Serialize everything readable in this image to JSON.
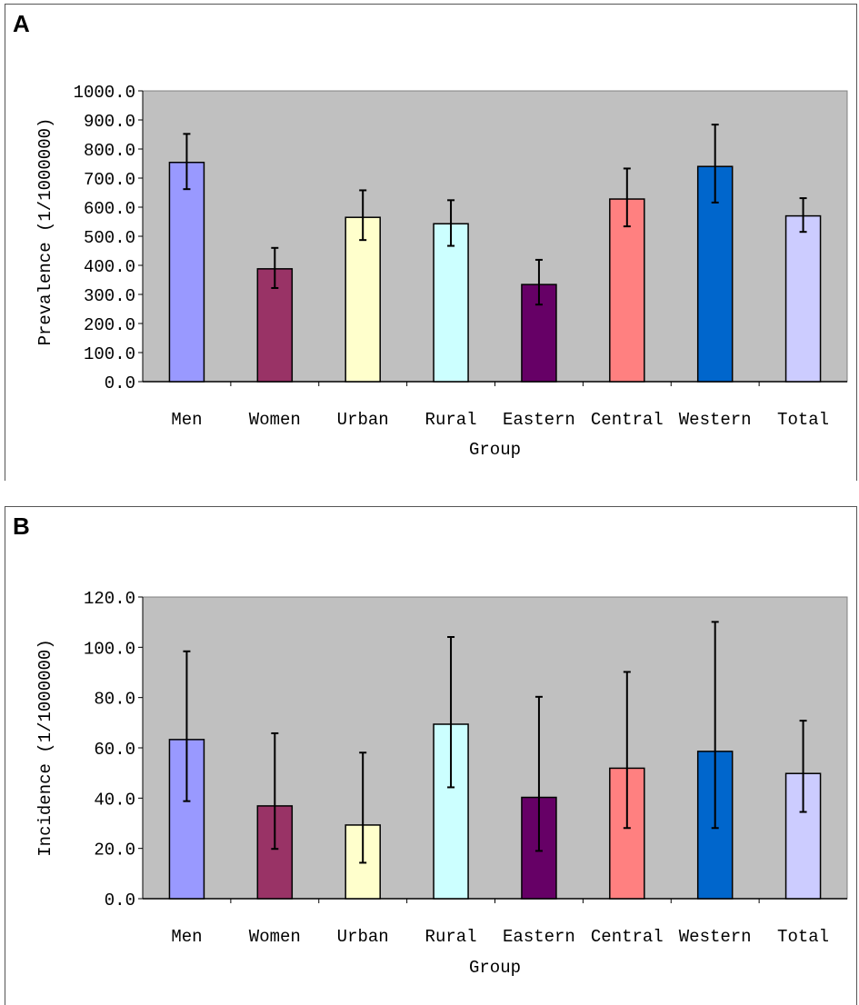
{
  "chart_data": [
    {
      "panel": "A",
      "type": "bar",
      "title": "",
      "xlabel": "Group",
      "ylabel": "Prevalence (1/1000000)",
      "ylim": [
        0,
        1000
      ],
      "yticks": [
        "0.0",
        "100.0",
        "200.0",
        "300.0",
        "400.0",
        "500.0",
        "600.0",
        "700.0",
        "800.0",
        "900.0",
        "1000.0"
      ],
      "categories": [
        "Men",
        "Women",
        "Urban",
        "Rural",
        "Eastern",
        "Central",
        "Western",
        "Total"
      ],
      "values": [
        754,
        388,
        565,
        543,
        334,
        628,
        740,
        570
      ],
      "error_low": [
        662,
        322,
        487,
        467,
        265,
        534,
        616,
        515
      ],
      "error_high": [
        852,
        460,
        658,
        624,
        419,
        733,
        884,
        631
      ],
      "colors": [
        "#9999ff",
        "#993366",
        "#ffffcc",
        "#ccffff",
        "#660066",
        "#ff8080",
        "#0066cc",
        "#ccccff"
      ],
      "background": "#c0c0c0",
      "grid": false
    },
    {
      "panel": "B",
      "type": "bar",
      "title": "",
      "xlabel": "Group",
      "ylabel": "Incidence (1/1000000)",
      "ylim": [
        0,
        120
      ],
      "yticks": [
        "0.0",
        "20.0",
        "40.0",
        "60.0",
        "80.0",
        "100.0",
        "120.0"
      ],
      "categories": [
        "Men",
        "Women",
        "Urban",
        "Rural",
        "Eastern",
        "Central",
        "Western",
        "Total"
      ],
      "values": [
        63.3,
        36.9,
        29.3,
        69.4,
        40.3,
        51.9,
        58.6,
        49.8
      ],
      "error_low": [
        38.8,
        19.8,
        14.3,
        44.3,
        19.0,
        28.1,
        28.1,
        34.5
      ],
      "error_high": [
        98.4,
        65.8,
        58.1,
        104.1,
        80.3,
        90.2,
        110.1,
        70.8
      ],
      "colors": [
        "#9999ff",
        "#993366",
        "#ffffcc",
        "#ccffff",
        "#660066",
        "#ff8080",
        "#0066cc",
        "#ccccff"
      ],
      "background": "#c0c0c0",
      "grid": false
    }
  ]
}
